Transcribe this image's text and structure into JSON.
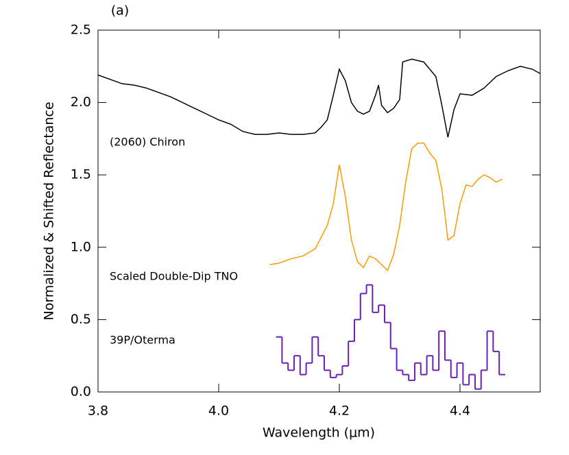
{
  "chart_data": {
    "type": "line",
    "title": "(a)",
    "xlabel": "Wavelength (μm)",
    "ylabel": "Normalized & Shifted Reflectance",
    "xlim": [
      3.8,
      4.533
    ],
    "ylim": [
      0,
      2.5
    ],
    "xticks": [
      3.8,
      {
        "value": 4.0,
        "label": "4.0"
      },
      4.2,
      4.4
    ],
    "yticks": [
      {
        "value": 0,
        "label": "0.0"
      },
      0.5,
      {
        "value": 1,
        "label": "1.0"
      },
      1.5,
      {
        "value": 2,
        "label": "2.0"
      },
      2.5
    ],
    "annotations": [
      "(2060) Chiron",
      "Scaled Double-Dip TNO",
      "39P/Oterma"
    ],
    "series": [
      {
        "name": "(2060) Chiron",
        "color": "#000000",
        "drawstyle": "line",
        "x": [
          3.8,
          3.82,
          3.84,
          3.86,
          3.88,
          3.9,
          3.92,
          3.94,
          3.96,
          3.98,
          4.0,
          4.02,
          4.04,
          4.06,
          4.08,
          4.1,
          4.12,
          4.14,
          4.16,
          4.17,
          4.18,
          4.19,
          4.2,
          4.21,
          4.22,
          4.23,
          4.24,
          4.25,
          4.26,
          4.265,
          4.27,
          4.28,
          4.29,
          4.3,
          4.305,
          4.32,
          4.34,
          4.36,
          4.37,
          4.38,
          4.39,
          4.4,
          4.42,
          4.44,
          4.46,
          4.48,
          4.5,
          4.52,
          4.533
        ],
        "values": [
          2.19,
          2.16,
          2.13,
          2.12,
          2.1,
          2.07,
          2.04,
          2.0,
          1.96,
          1.92,
          1.88,
          1.85,
          1.8,
          1.78,
          1.78,
          1.79,
          1.78,
          1.78,
          1.79,
          1.83,
          1.88,
          2.05,
          2.23,
          2.15,
          2.0,
          1.94,
          1.92,
          1.94,
          2.05,
          2.12,
          1.98,
          1.93,
          1.96,
          2.02,
          2.28,
          2.3,
          2.28,
          2.18,
          1.98,
          1.76,
          1.95,
          2.06,
          2.05,
          2.1,
          2.18,
          2.22,
          2.25,
          2.23,
          2.2
        ]
      },
      {
        "name": "Scaled Double-Dip TNO",
        "color": "#ff9900",
        "drawstyle": "line",
        "x": [
          4.085,
          4.1,
          4.12,
          4.14,
          4.16,
          4.18,
          4.19,
          4.2,
          4.21,
          4.22,
          4.23,
          4.24,
          4.25,
          4.26,
          4.27,
          4.28,
          4.29,
          4.3,
          4.31,
          4.32,
          4.33,
          4.34,
          4.35,
          4.36,
          4.37,
          4.38,
          4.39,
          4.4,
          4.41,
          4.42,
          4.43,
          4.44,
          4.45,
          4.46,
          4.47
        ],
        "values": [
          0.88,
          0.89,
          0.92,
          0.94,
          0.99,
          1.15,
          1.3,
          1.57,
          1.35,
          1.05,
          0.9,
          0.86,
          0.94,
          0.92,
          0.88,
          0.84,
          0.95,
          1.15,
          1.45,
          1.68,
          1.72,
          1.72,
          1.65,
          1.6,
          1.4,
          1.05,
          1.08,
          1.3,
          1.43,
          1.42,
          1.47,
          1.5,
          1.48,
          1.45,
          1.47
        ]
      },
      {
        "name": "39P/Oterma",
        "color": "#6a1fb8",
        "drawstyle": "steps",
        "x": [
          4.1,
          4.11,
          4.12,
          4.13,
          4.14,
          4.15,
          4.16,
          4.17,
          4.18,
          4.19,
          4.2,
          4.21,
          4.22,
          4.23,
          4.24,
          4.25,
          4.26,
          4.27,
          4.28,
          4.29,
          4.3,
          4.31,
          4.32,
          4.33,
          4.34,
          4.35,
          4.36,
          4.37,
          4.38,
          4.39,
          4.4,
          4.41,
          4.42,
          4.43,
          4.44,
          4.45,
          4.46,
          4.47
        ],
        "values": [
          0.38,
          0.2,
          0.15,
          0.25,
          0.12,
          0.2,
          0.38,
          0.25,
          0.15,
          0.1,
          0.12,
          0.18,
          0.35,
          0.5,
          0.68,
          0.74,
          0.55,
          0.6,
          0.48,
          0.3,
          0.15,
          0.12,
          0.08,
          0.2,
          0.12,
          0.25,
          0.15,
          0.42,
          0.22,
          0.1,
          0.2,
          0.05,
          0.12,
          0.02,
          0.15,
          0.42,
          0.28,
          0.12
        ]
      }
    ]
  }
}
